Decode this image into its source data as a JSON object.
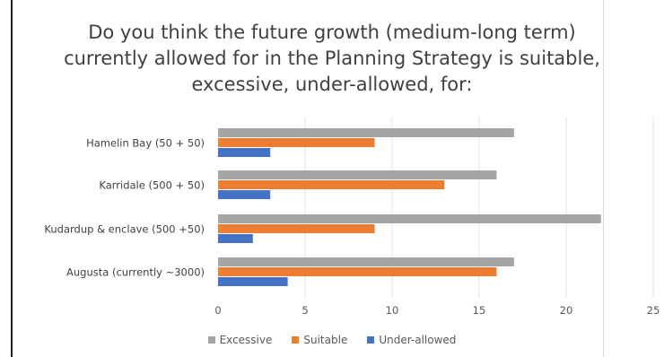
{
  "chart_data": {
    "type": "bar",
    "orientation": "horizontal",
    "title_lines": [
      "Do you think the future growth (medium-long term)",
      "currently allowed for in the Planning Strategy is suitable,",
      "excessive, under-allowed, for:"
    ],
    "categories": [
      "Hamelin Bay (50 + 50)",
      "Karridale (500 + 50)",
      "Kudardup & enclave (500 +50)",
      "Augusta (currently ~3000)"
    ],
    "series": [
      {
        "name": "Excessive",
        "color": "#a5a5a5",
        "values": [
          17,
          16,
          22,
          17
        ]
      },
      {
        "name": "Suitable",
        "color": "#ed7d31",
        "values": [
          9,
          13,
          9,
          16
        ]
      },
      {
        "name": "Under-allowed",
        "color": "#4472c4",
        "values": [
          3,
          3,
          2,
          4
        ]
      }
    ],
    "xlim": [
      0,
      25
    ],
    "x_ticks": [
      {
        "value": 0,
        "label": "0"
      },
      {
        "value": 5,
        "label": "5"
      },
      {
        "value": 10,
        "label": "10"
      },
      {
        "value": 15,
        "label": "15"
      },
      {
        "value": 20,
        "label": "20"
      },
      {
        "value": 25,
        "label": "25"
      }
    ],
    "grid": true,
    "legend_position": "bottom"
  }
}
